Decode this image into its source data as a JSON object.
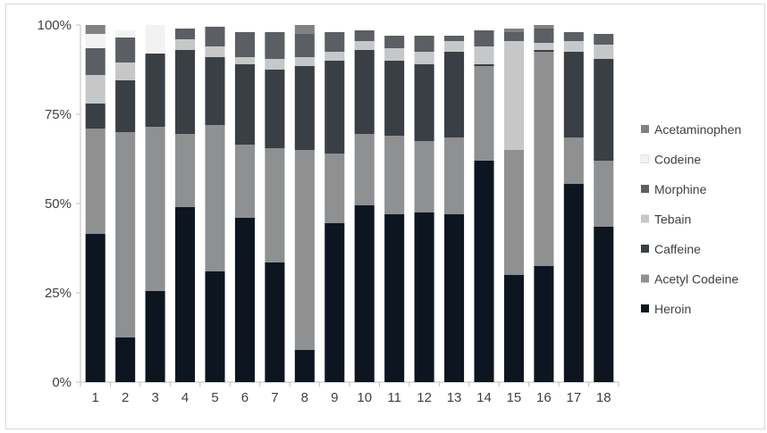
{
  "chart_data": {
    "type": "bar",
    "stacked": true,
    "orientation": "vertical",
    "title": "",
    "xlabel": "",
    "ylabel": "",
    "ylim": [
      0,
      100
    ],
    "yticks": [
      0,
      25,
      50,
      75,
      100
    ],
    "ytick_labels": [
      "0%",
      "25%",
      "50%",
      "75%",
      "100%"
    ],
    "grid": false,
    "legend_position": "right",
    "categories": [
      "1",
      "2",
      "3",
      "4",
      "5",
      "6",
      "7",
      "8",
      "9",
      "10",
      "11",
      "12",
      "13",
      "14",
      "15",
      "16",
      "17",
      "18"
    ],
    "series": [
      {
        "name": "Heroin",
        "color": "#0d1620",
        "values": [
          41.5,
          12.5,
          25.5,
          49,
          31,
          46,
          33.5,
          9,
          44.5,
          49.5,
          47,
          47.5,
          47,
          62,
          30,
          32.5,
          55.5,
          43.5
        ]
      },
      {
        "name": "Acetyl Codeine",
        "color": "#8e9092",
        "values": [
          29.5,
          57.5,
          46,
          20.5,
          41,
          20.5,
          32,
          56,
          19.5,
          20,
          22,
          20,
          21.5,
          26.5,
          35,
          60,
          13,
          18.5
        ]
      },
      {
        "name": "Caffeine",
        "color": "#3a3f45",
        "values": [
          7,
          14.5,
          20.5,
          23.5,
          19,
          22.5,
          22,
          23.5,
          26,
          23.5,
          21,
          21.5,
          24,
          0.5,
          0,
          0.5,
          24,
          28.5
        ]
      },
      {
        "name": "Tebain",
        "color": "#c6c7c8",
        "values": [
          8,
          5,
          0,
          3,
          3,
          2,
          3,
          2.5,
          2.5,
          2.5,
          3.5,
          3.5,
          3,
          5,
          30.5,
          2,
          3,
          4
        ]
      },
      {
        "name": "Morphine",
        "color": "#5b5f64",
        "values": [
          7.5,
          7,
          0,
          3,
          5.5,
          7,
          7.5,
          6.5,
          5.5,
          3,
          3.5,
          4.5,
          1.5,
          4.5,
          2.5,
          4,
          2.5,
          3
        ]
      },
      {
        "name": "Codeine",
        "color": "#f2f2f2",
        "values": [
          4,
          2,
          8,
          0,
          0.5,
          0,
          0,
          0,
          0,
          0,
          0,
          0,
          0,
          0,
          0,
          0,
          0,
          0
        ]
      },
      {
        "name": "Acetaminophen",
        "color": "#7f8183",
        "values": [
          2.5,
          0,
          0,
          0,
          0,
          0,
          0,
          2.5,
          0,
          0,
          0,
          0,
          0,
          0,
          1,
          1,
          0,
          0
        ]
      }
    ]
  }
}
